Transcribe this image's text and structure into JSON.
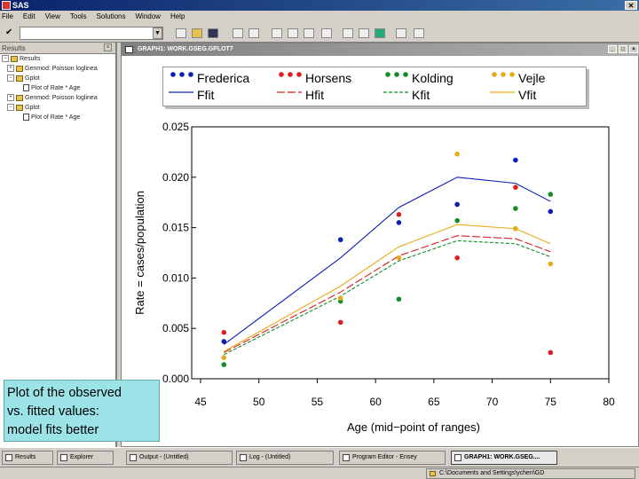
{
  "app": {
    "title": "SAS"
  },
  "menu": [
    "File",
    "Edit",
    "View",
    "Tools",
    "Solutions",
    "Window",
    "Help"
  ],
  "command_box": {
    "value": ""
  },
  "results": {
    "header": "Results",
    "items": [
      {
        "label": "Results",
        "level": 0,
        "kind": "folder"
      },
      {
        "label": "Genmod: Poisson loglinea",
        "level": 1,
        "kind": "folder"
      },
      {
        "label": "Gplot",
        "level": 1,
        "kind": "folder"
      },
      {
        "label": "Plot of Rate * Age",
        "level": 2,
        "kind": "plot"
      },
      {
        "label": "Genmod: Poisson loglinea",
        "level": 1,
        "kind": "folder"
      },
      {
        "label": "Gplot",
        "level": 1,
        "kind": "folder"
      },
      {
        "label": "Plot of Rate * Age",
        "level": 2,
        "kind": "plot"
      }
    ]
  },
  "graph_window": {
    "title": "GRAPH1: WORK.GSEG.GPLOT7"
  },
  "callout": {
    "line1": "Plot of the observed",
    "line2": "vs. fitted values:",
    "line3": "model fits better"
  },
  "taskbar": [
    {
      "label": "Results",
      "active": false
    },
    {
      "label": "Explorer",
      "active": false
    },
    {
      "label": "Output - (Untitled)",
      "active": false
    },
    {
      "label": "Log - (Untitled)",
      "active": false
    },
    {
      "label": "Program Editor - Ensey",
      "active": false
    },
    {
      "label": "GRAPH1: WORK.GSEG....",
      "active": true
    }
  ],
  "status": {
    "path": "C:\\Documents and Settings\\ychen\\GD"
  },
  "chart_data": {
    "type": "scatter",
    "xlabel": "Age (mid−point of ranges)",
    "ylabel": "Rate = cases/population",
    "xlim": [
      45,
      80
    ],
    "ylim": [
      0.0,
      0.025
    ],
    "xticks": [
      "45",
      "50",
      "55",
      "60",
      "65",
      "70",
      "75",
      "80"
    ],
    "yticks": [
      "0.000",
      "0.005",
      "0.010",
      "0.015",
      "0.020",
      "0.025"
    ],
    "x": [
      47,
      57,
      62,
      67,
      72,
      75
    ],
    "series": [
      {
        "name": "Frederica",
        "color": "#0a1eb4",
        "observed": [
          0.0037,
          0.0138,
          0.0155,
          0.0173,
          0.0217,
          0.0166
        ],
        "fit_name": "Ffit",
        "fitted": [
          0.0034,
          0.012,
          0.017,
          0.02,
          0.0194,
          0.0176
        ]
      },
      {
        "name": "Horsens",
        "color": "#dc1e1e",
        "observed": [
          0.0046,
          0.0056,
          0.0163,
          0.012,
          0.019,
          0.0026
        ],
        "fit_name": "Hfit",
        "fitted": [
          0.0026,
          0.0086,
          0.0122,
          0.0142,
          0.0139,
          0.0126
        ]
      },
      {
        "name": "Kolding",
        "color": "#148c28",
        "observed": [
          0.0014,
          0.0077,
          0.0079,
          0.0157,
          0.0169,
          0.0183
        ],
        "fit_name": "Kfit",
        "fitted": [
          0.0024,
          0.0082,
          0.0117,
          0.0137,
          0.0134,
          0.0121
        ]
      },
      {
        "name": "Vejle",
        "color": "#e6aa14",
        "observed": [
          0.0021,
          0.008,
          0.012,
          0.0223,
          0.0149,
          0.0114
        ],
        "fit_name": "Vfit",
        "fitted": [
          0.0027,
          0.0092,
          0.0131,
          0.0153,
          0.0149,
          0.0134
        ]
      }
    ]
  }
}
